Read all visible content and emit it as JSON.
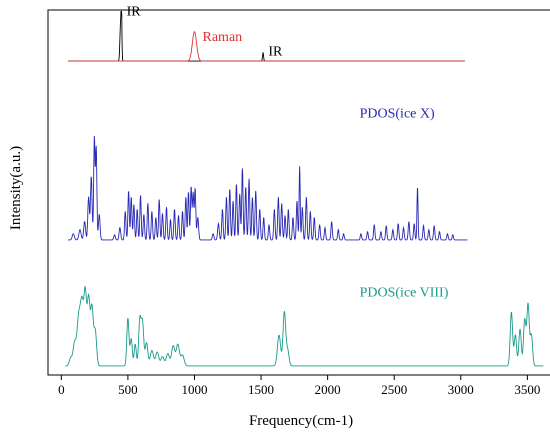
{
  "chart_data": {
    "type": "line",
    "title": "",
    "xlabel": "Frequency(cm-1)",
    "ylabel": "Intensity(a.u.)",
    "xlim": [
      -100,
      3700
    ],
    "xticks": [
      0,
      500,
      1000,
      1500,
      2000,
      2500,
      3000,
      3500
    ],
    "y_ticks_labeled": false,
    "grid": false,
    "legend": "inline labels",
    "series": [
      {
        "name": "IR",
        "color": "#000000",
        "range": [
          50,
          3030
        ],
        "offset": 0.86,
        "scale": 0.13,
        "peaks": [
          {
            "x": 445,
            "y": 0.78,
            "w": 5
          },
          {
            "x": 452,
            "y": 1.0,
            "w": 3
          },
          {
            "x": 1515,
            "y": 0.18,
            "w": 4
          }
        ]
      },
      {
        "name": "Raman",
        "color": "#e03030",
        "range": [
          50,
          3030
        ],
        "offset": 0.86,
        "scale": 0.13,
        "peaks": [
          {
            "x": 1000,
            "y": 0.62,
            "w": 16
          }
        ]
      },
      {
        "name": "PDOS(ice X)",
        "color": "#2828b4",
        "range": [
          50,
          3050
        ],
        "offset": 0.37,
        "scale": 0.28,
        "peaks": [
          {
            "x": 90,
            "y": 0.06,
            "w": 8
          },
          {
            "x": 140,
            "y": 0.1,
            "w": 8
          },
          {
            "x": 175,
            "y": 0.18,
            "w": 7
          },
          {
            "x": 205,
            "y": 0.42,
            "w": 6
          },
          {
            "x": 225,
            "y": 0.62,
            "w": 6
          },
          {
            "x": 248,
            "y": 1.0,
            "w": 5
          },
          {
            "x": 262,
            "y": 0.9,
            "w": 5
          },
          {
            "x": 285,
            "y": 0.25,
            "w": 6
          },
          {
            "x": 400,
            "y": 0.05,
            "w": 6
          },
          {
            "x": 440,
            "y": 0.12,
            "w": 6
          },
          {
            "x": 480,
            "y": 0.28,
            "w": 5
          },
          {
            "x": 505,
            "y": 0.48,
            "w": 5
          },
          {
            "x": 525,
            "y": 0.42,
            "w": 5
          },
          {
            "x": 545,
            "y": 0.35,
            "w": 5
          },
          {
            "x": 570,
            "y": 0.3,
            "w": 5
          },
          {
            "x": 595,
            "y": 0.44,
            "w": 5
          },
          {
            "x": 620,
            "y": 0.25,
            "w": 5
          },
          {
            "x": 650,
            "y": 0.36,
            "w": 5
          },
          {
            "x": 680,
            "y": 0.28,
            "w": 5
          },
          {
            "x": 710,
            "y": 0.22,
            "w": 5
          },
          {
            "x": 735,
            "y": 0.4,
            "w": 5
          },
          {
            "x": 760,
            "y": 0.26,
            "w": 5
          },
          {
            "x": 790,
            "y": 0.32,
            "w": 5
          },
          {
            "x": 820,
            "y": 0.2,
            "w": 5
          },
          {
            "x": 850,
            "y": 0.3,
            "w": 5
          },
          {
            "x": 880,
            "y": 0.24,
            "w": 5
          },
          {
            "x": 910,
            "y": 0.28,
            "w": 5
          },
          {
            "x": 935,
            "y": 0.42,
            "w": 5
          },
          {
            "x": 955,
            "y": 0.47,
            "w": 5
          },
          {
            "x": 975,
            "y": 0.52,
            "w": 5
          },
          {
            "x": 990,
            "y": 0.46,
            "w": 5
          },
          {
            "x": 1005,
            "y": 0.5,
            "w": 5
          },
          {
            "x": 1025,
            "y": 0.22,
            "w": 6
          },
          {
            "x": 1140,
            "y": 0.06,
            "w": 6
          },
          {
            "x": 1180,
            "y": 0.16,
            "w": 6
          },
          {
            "x": 1210,
            "y": 0.3,
            "w": 5
          },
          {
            "x": 1240,
            "y": 0.42,
            "w": 5
          },
          {
            "x": 1265,
            "y": 0.5,
            "w": 5
          },
          {
            "x": 1290,
            "y": 0.38,
            "w": 5
          },
          {
            "x": 1315,
            "y": 0.55,
            "w": 5
          },
          {
            "x": 1340,
            "y": 0.45,
            "w": 5
          },
          {
            "x": 1360,
            "y": 0.7,
            "w": 5
          },
          {
            "x": 1385,
            "y": 0.52,
            "w": 5
          },
          {
            "x": 1410,
            "y": 0.6,
            "w": 5
          },
          {
            "x": 1435,
            "y": 0.42,
            "w": 5
          },
          {
            "x": 1460,
            "y": 0.48,
            "w": 5
          },
          {
            "x": 1490,
            "y": 0.3,
            "w": 5
          },
          {
            "x": 1520,
            "y": 0.22,
            "w": 5
          },
          {
            "x": 1560,
            "y": 0.15,
            "w": 5
          },
          {
            "x": 1600,
            "y": 0.3,
            "w": 5
          },
          {
            "x": 1630,
            "y": 0.42,
            "w": 5
          },
          {
            "x": 1655,
            "y": 0.36,
            "w": 5
          },
          {
            "x": 1680,
            "y": 0.24,
            "w": 5
          },
          {
            "x": 1705,
            "y": 0.3,
            "w": 5
          },
          {
            "x": 1740,
            "y": 0.22,
            "w": 5
          },
          {
            "x": 1770,
            "y": 0.38,
            "w": 5
          },
          {
            "x": 1790,
            "y": 0.72,
            "w": 4
          },
          {
            "x": 1810,
            "y": 0.32,
            "w": 5
          },
          {
            "x": 1840,
            "y": 0.42,
            "w": 5
          },
          {
            "x": 1870,
            "y": 0.28,
            "w": 5
          },
          {
            "x": 1900,
            "y": 0.22,
            "w": 5
          },
          {
            "x": 1940,
            "y": 0.15,
            "w": 5
          },
          {
            "x": 1980,
            "y": 0.12,
            "w": 5
          },
          {
            "x": 2030,
            "y": 0.18,
            "w": 5
          },
          {
            "x": 2080,
            "y": 0.1,
            "w": 5
          },
          {
            "x": 2120,
            "y": 0.06,
            "w": 5
          },
          {
            "x": 2250,
            "y": 0.06,
            "w": 5
          },
          {
            "x": 2300,
            "y": 0.08,
            "w": 5
          },
          {
            "x": 2350,
            "y": 0.15,
            "w": 5
          },
          {
            "x": 2400,
            "y": 0.08,
            "w": 5
          },
          {
            "x": 2440,
            "y": 0.14,
            "w": 5
          },
          {
            "x": 2490,
            "y": 0.1,
            "w": 5
          },
          {
            "x": 2530,
            "y": 0.16,
            "w": 5
          },
          {
            "x": 2570,
            "y": 0.12,
            "w": 5
          },
          {
            "x": 2610,
            "y": 0.18,
            "w": 5
          },
          {
            "x": 2650,
            "y": 0.16,
            "w": 5
          },
          {
            "x": 2675,
            "y": 0.52,
            "w": 4
          },
          {
            "x": 2720,
            "y": 0.14,
            "w": 5
          },
          {
            "x": 2760,
            "y": 0.1,
            "w": 5
          },
          {
            "x": 2800,
            "y": 0.14,
            "w": 5
          },
          {
            "x": 2840,
            "y": 0.08,
            "w": 5
          },
          {
            "x": 2900,
            "y": 0.06,
            "w": 5
          },
          {
            "x": 2940,
            "y": 0.05,
            "w": 5
          }
        ]
      },
      {
        "name": "PDOS(ice VIII)",
        "color": "#1a9a8a",
        "range": [
          30,
          3620
        ],
        "offset": 0.025,
        "scale": 0.21,
        "peaks": [
          {
            "x": 70,
            "y": 0.1,
            "w": 10
          },
          {
            "x": 100,
            "y": 0.3,
            "w": 12
          },
          {
            "x": 130,
            "y": 0.6,
            "w": 12
          },
          {
            "x": 155,
            "y": 0.8,
            "w": 12
          },
          {
            "x": 180,
            "y": 0.9,
            "w": 10
          },
          {
            "x": 205,
            "y": 0.86,
            "w": 10
          },
          {
            "x": 230,
            "y": 0.75,
            "w": 10
          },
          {
            "x": 255,
            "y": 0.45,
            "w": 10
          },
          {
            "x": 500,
            "y": 0.62,
            "w": 8
          },
          {
            "x": 525,
            "y": 0.35,
            "w": 8
          },
          {
            "x": 555,
            "y": 0.28,
            "w": 8
          },
          {
            "x": 590,
            "y": 0.6,
            "w": 9
          },
          {
            "x": 610,
            "y": 0.55,
            "w": 9
          },
          {
            "x": 640,
            "y": 0.3,
            "w": 10
          },
          {
            "x": 680,
            "y": 0.2,
            "w": 12
          },
          {
            "x": 720,
            "y": 0.18,
            "w": 12
          },
          {
            "x": 760,
            "y": 0.12,
            "w": 12
          },
          {
            "x": 800,
            "y": 0.16,
            "w": 12
          },
          {
            "x": 840,
            "y": 0.26,
            "w": 12
          },
          {
            "x": 875,
            "y": 0.28,
            "w": 12
          },
          {
            "x": 910,
            "y": 0.14,
            "w": 12
          },
          {
            "x": 1635,
            "y": 0.4,
            "w": 12
          },
          {
            "x": 1675,
            "y": 0.7,
            "w": 10
          },
          {
            "x": 1700,
            "y": 0.2,
            "w": 10
          },
          {
            "x": 3380,
            "y": 0.7,
            "w": 9
          },
          {
            "x": 3410,
            "y": 0.4,
            "w": 9
          },
          {
            "x": 3445,
            "y": 0.48,
            "w": 9
          },
          {
            "x": 3480,
            "y": 0.6,
            "w": 9
          },
          {
            "x": 3505,
            "y": 0.8,
            "w": 9
          },
          {
            "x": 3530,
            "y": 0.4,
            "w": 9
          }
        ]
      }
    ],
    "labels": [
      {
        "text": "IR",
        "x": 490,
        "y": 0.985,
        "color": "#000000"
      },
      {
        "text": "Raman",
        "x": 1060,
        "y": 0.915,
        "color": "#e03030"
      },
      {
        "text": "IR",
        "x": 1555,
        "y": 0.875,
        "color": "#000000"
      },
      {
        "text": "PDOS(ice X)",
        "x": 2240,
        "y": 0.705,
        "color": "#2828b4"
      },
      {
        "text": "PDOS(ice VIII)",
        "x": 2240,
        "y": 0.215,
        "color": "#1a9a8a"
      }
    ]
  }
}
